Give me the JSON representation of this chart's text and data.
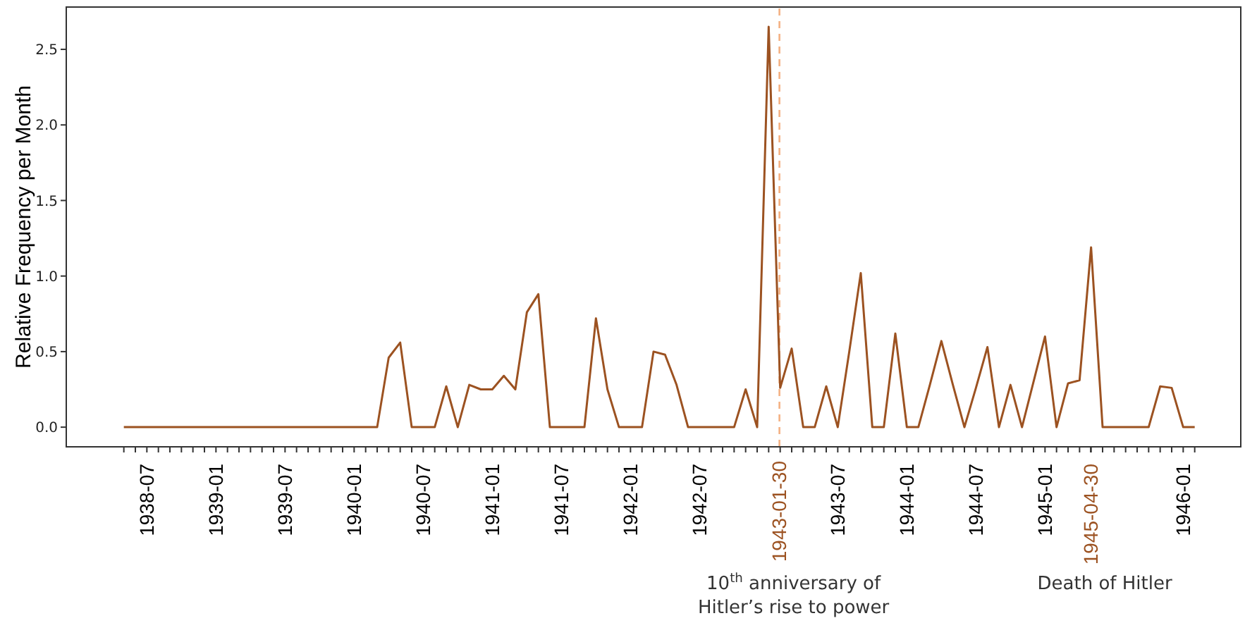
{
  "chart_data": {
    "type": "line",
    "ylabel": "Relative Frequency per Month",
    "color": "#9c5221",
    "x": [
      "1938-05",
      "1938-06",
      "1938-07",
      "1938-08",
      "1938-09",
      "1938-10",
      "1938-11",
      "1938-12",
      "1939-01",
      "1939-02",
      "1939-03",
      "1939-04",
      "1939-05",
      "1939-06",
      "1939-07",
      "1939-08",
      "1939-09",
      "1939-10",
      "1939-11",
      "1939-12",
      "1940-01",
      "1940-02",
      "1940-03",
      "1940-04",
      "1940-05",
      "1940-06",
      "1940-07",
      "1940-08",
      "1940-09",
      "1940-10",
      "1940-11",
      "1940-12",
      "1941-01",
      "1941-02",
      "1941-03",
      "1941-04",
      "1941-05",
      "1941-06",
      "1941-07",
      "1941-08",
      "1941-09",
      "1941-10",
      "1941-11",
      "1941-12",
      "1942-01",
      "1942-02",
      "1942-03",
      "1942-04",
      "1942-05",
      "1942-06",
      "1942-07",
      "1942-08",
      "1942-09",
      "1942-10",
      "1942-11",
      "1942-12",
      "1943-01",
      "1943-02",
      "1943-03",
      "1943-04",
      "1943-05",
      "1943-06",
      "1943-07",
      "1943-08",
      "1943-09",
      "1943-10",
      "1943-11",
      "1943-12",
      "1944-01",
      "1944-02",
      "1944-03",
      "1944-04",
      "1944-05",
      "1944-06",
      "1944-07",
      "1944-08",
      "1944-09",
      "1944-10",
      "1944-11",
      "1944-12",
      "1945-01",
      "1945-02",
      "1945-03",
      "1945-04",
      "1945-05",
      "1945-06",
      "1945-07",
      "1945-08",
      "1945-09",
      "1945-10",
      "1945-11",
      "1945-12",
      "1946-01",
      "1946-02"
    ],
    "values": [
      0,
      0,
      0,
      0,
      0,
      0,
      0,
      0,
      0,
      0,
      0,
      0,
      0,
      0,
      0,
      0,
      0,
      0,
      0,
      0,
      0,
      0,
      0,
      0.46,
      0.56,
      0,
      0,
      0,
      0.27,
      0,
      0.28,
      0.25,
      0.25,
      0.34,
      0.25,
      0.76,
      0.88,
      0,
      0,
      0,
      0,
      0.72,
      0.25,
      0,
      0,
      0,
      0.5,
      0.48,
      0.28,
      0,
      0,
      0,
      0,
      0,
      0.25,
      0,
      2.65,
      0.26,
      0.52,
      0,
      0,
      0.27,
      0,
      0.5,
      1.02,
      0,
      0,
      0.62,
      0,
      0,
      0.28,
      0.57,
      0.28,
      0,
      0.26,
      0.53,
      0,
      0.28,
      0,
      0.3,
      0.6,
      0,
      0.29,
      0.31,
      1.19,
      0,
      0,
      0,
      0,
      0,
      0.27,
      0.26,
      0,
      0
    ],
    "xlim": [
      "1937-12",
      "1946-06"
    ],
    "xticks": [
      {
        "value": "1938-05",
        "label": null
      },
      {
        "value": "1938-06",
        "label": null
      },
      "1938-07",
      {
        "value": "1938-08",
        "label": null
      },
      {
        "value": "1938-09",
        "label": null
      },
      {
        "value": "1938-10",
        "label": null
      },
      {
        "value": "1938-11",
        "label": null
      },
      {
        "value": "1938-12",
        "label": null
      },
      "1939-01",
      {
        "value": "1939-02",
        "label": null
      },
      {
        "value": "1939-03",
        "label": null
      },
      {
        "value": "1939-04",
        "label": null
      },
      {
        "value": "1939-05",
        "label": null
      },
      {
        "value": "1939-06",
        "label": null
      },
      "1939-07",
      {
        "value": "1939-08",
        "label": null
      },
      {
        "value": "1939-09",
        "label": null
      },
      {
        "value": "1939-10",
        "label": null
      },
      {
        "value": "1939-11",
        "label": null
      },
      {
        "value": "1939-12",
        "label": null
      },
      "1940-01",
      {
        "value": "1940-02",
        "label": null
      },
      {
        "value": "1940-03",
        "label": null
      },
      {
        "value": "1940-04",
        "label": null
      },
      {
        "value": "1940-05",
        "label": null
      },
      {
        "value": "1940-06",
        "label": null
      },
      "1940-07",
      {
        "value": "1940-08",
        "label": null
      },
      {
        "value": "1940-09",
        "label": null
      },
      {
        "value": "1940-10",
        "label": null
      },
      {
        "value": "1940-11",
        "label": null
      },
      {
        "value": "1940-12",
        "label": null
      },
      "1941-01",
      {
        "value": "1941-02",
        "label": null
      },
      {
        "value": "1941-03",
        "label": null
      },
      {
        "value": "1941-04",
        "label": null
      },
      {
        "value": "1941-05",
        "label": null
      },
      {
        "value": "1941-06",
        "label": null
      },
      "1941-07",
      {
        "value": "1941-08",
        "label": null
      },
      {
        "value": "1941-09",
        "label": null
      },
      {
        "value": "1941-10",
        "label": null
      },
      {
        "value": "1941-11",
        "label": null
      },
      {
        "value": "1941-12",
        "label": null
      },
      "1942-01",
      {
        "value": "1942-02",
        "label": null
      },
      {
        "value": "1942-03",
        "label": null
      },
      {
        "value": "1942-04",
        "label": null
      },
      {
        "value": "1942-05",
        "label": null
      },
      {
        "value": "1942-06",
        "label": null
      },
      "1942-07",
      {
        "value": "1942-08",
        "label": null
      },
      {
        "value": "1942-09",
        "label": null
      },
      {
        "value": "1942-10",
        "label": null
      },
      {
        "value": "1942-11",
        "label": null
      },
      {
        "value": "1942-12",
        "label": null
      },
      {
        "value": "1943-01",
        "label": null
      },
      {
        "value": "1943-02",
        "label": null
      },
      {
        "value": "1943-03",
        "label": null
      },
      {
        "value": "1943-04",
        "label": null
      },
      {
        "value": "1943-05",
        "label": null
      },
      {
        "value": "1943-06",
        "label": null
      },
      "1943-07",
      {
        "value": "1943-08",
        "label": null
      },
      {
        "value": "1943-09",
        "label": null
      },
      {
        "value": "1943-10",
        "label": null
      },
      {
        "value": "1943-11",
        "label": null
      },
      {
        "value": "1943-12",
        "label": null
      },
      "1944-01",
      {
        "value": "1944-02",
        "label": null
      },
      {
        "value": "1944-03",
        "label": null
      },
      {
        "value": "1944-04",
        "label": null
      },
      {
        "value": "1944-05",
        "label": null
      },
      {
        "value": "1944-06",
        "label": null
      },
      "1944-07",
      {
        "value": "1944-08",
        "label": null
      },
      {
        "value": "1944-09",
        "label": null
      },
      {
        "value": "1944-10",
        "label": null
      },
      {
        "value": "1944-11",
        "label": null
      },
      {
        "value": "1944-12",
        "label": null
      },
      "1945-01",
      {
        "value": "1945-02",
        "label": null
      },
      {
        "value": "1945-03",
        "label": null
      },
      {
        "value": "1945-04",
        "label": null
      },
      "1945-04-30",
      {
        "value": "1945-05",
        "label": null
      },
      {
        "value": "1945-06",
        "label": null
      },
      {
        "value": "1945-07",
        "label": null
      },
      {
        "value": "1945-08",
        "label": null
      },
      {
        "value": "1945-09",
        "label": null
      },
      {
        "value": "1945-10",
        "label": null
      },
      {
        "value": "1945-11",
        "label": null
      },
      {
        "value": "1945-12",
        "label": null
      },
      "1946-01",
      {
        "value": "1946-02",
        "label": null
      }
    ],
    "ylim": [
      -0.13,
      2.78
    ],
    "yticks": [
      {
        "value": 0,
        "label": "0.0"
      },
      {
        "value": 0.5,
        "label": "0.5"
      },
      {
        "value": 1,
        "label": "1.0"
      },
      {
        "value": 1.5,
        "label": "1.5"
      },
      {
        "value": 2,
        "label": "2.0"
      },
      {
        "value": 2.5,
        "label": "2.5"
      }
    ],
    "ref_lines": [
      {
        "axis": "x",
        "value": "1943-01-30",
        "label": "1943-01-30",
        "color": "#f4b183",
        "line_style": "dashed"
      }
    ],
    "annotations": [
      "10$^{th}$ anniversary of Hitler’s rise to power",
      "Death of Hitler"
    ]
  }
}
